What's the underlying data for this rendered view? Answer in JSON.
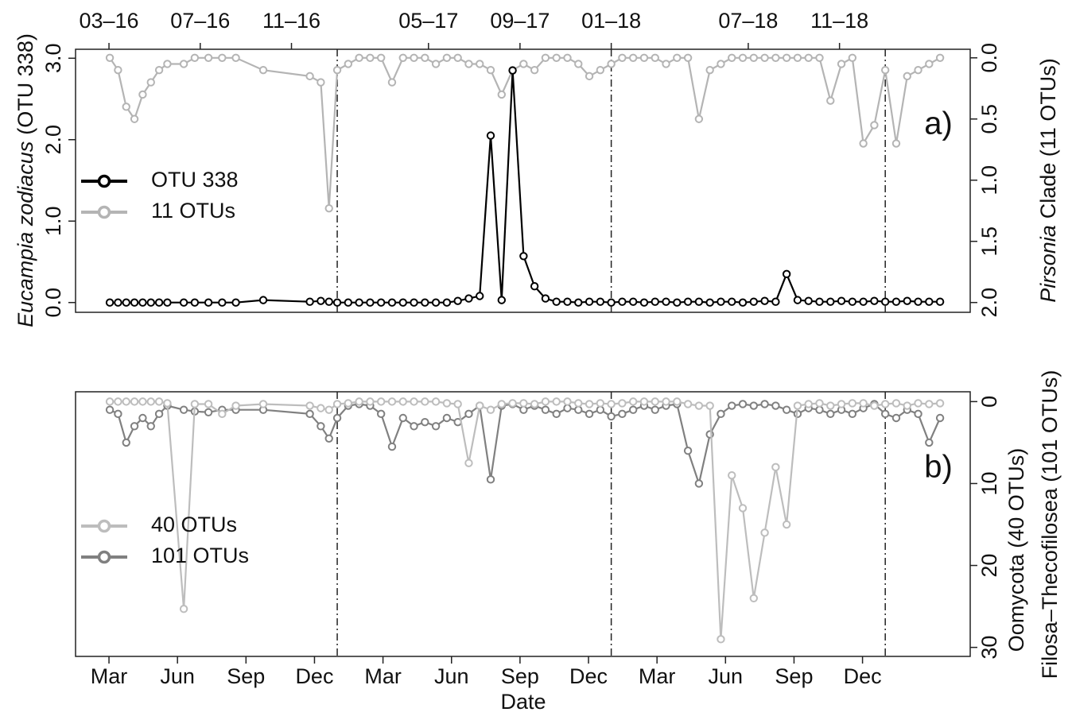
{
  "chart_data": [
    {
      "type": "line",
      "x": [
        2016.17,
        2016.2,
        2016.23,
        2016.26,
        2016.29,
        2016.32,
        2016.35,
        2016.38,
        2016.44,
        2016.48,
        2016.53,
        2016.58,
        2016.63,
        2016.73,
        2016.9,
        2016.94,
        2016.97,
        2017,
        2017.04,
        2017.08,
        2017.12,
        2017.16,
        2017.2,
        2017.24,
        2017.28,
        2017.32,
        2017.36,
        2017.4,
        2017.44,
        2017.48,
        2017.52,
        2017.56,
        2017.6,
        2017.64,
        2017.68,
        2017.72,
        2017.76,
        2017.8,
        2017.84,
        2017.88,
        2017.92,
        2017.96,
        2018,
        2018.04,
        2018.08,
        2018.12,
        2018.16,
        2018.2,
        2018.24,
        2018.28,
        2018.32,
        2018.36,
        2018.4,
        2018.44,
        2018.48,
        2018.52,
        2018.56,
        2018.6,
        2018.64,
        2018.68,
        2018.72,
        2018.76,
        2018.8,
        2018.84,
        2018.88,
        2018.92,
        2018.96,
        2019,
        2019.04,
        2019.08,
        2019.12,
        2019.16,
        2019.2
      ],
      "xlim": [
        2016.045,
        2019.31
      ],
      "top_xticks": [
        {
          "value": 2016.167,
          "label": "03–16"
        },
        {
          "value": 2016.5,
          "label": "07–16"
        },
        {
          "value": 2016.833,
          "label": "11–16"
        },
        {
          "value": 2017.333,
          "label": "05–17"
        },
        {
          "value": 2017.667,
          "label": "09–17"
        },
        {
          "value": 2018.0,
          "label": "01–18"
        },
        {
          "value": 2018.5,
          "label": "07–18"
        },
        {
          "value": 2018.833,
          "label": "11–18"
        }
      ],
      "vlines": [
        2017,
        2018,
        2019
      ],
      "ylim": [
        -0.12,
        3.11
      ],
      "yticks": [
        {
          "value": 0,
          "label": "0.0"
        },
        {
          "value": 1,
          "label": "1.0"
        },
        {
          "value": 2,
          "label": "2.0"
        },
        {
          "value": 3,
          "label": "3.0"
        }
      ],
      "ylabel": {
        "italic": "Eucampia zodiacus",
        "rest": "(OTU 338)"
      },
      "y2lim": [
        2.08,
        -0.07
      ],
      "y2ticks": [
        {
          "value": 0,
          "label": "0.0"
        },
        {
          "value": 0.5,
          "label": "0.5"
        },
        {
          "value": 1,
          "label": "1.0"
        },
        {
          "value": 1.5,
          "label": "1.5"
        },
        {
          "value": 2,
          "label": "2.0"
        }
      ],
      "y2label": {
        "italic": "Pirsonia",
        "rest": "Clade (11 OTUs)"
      },
      "annotation": "a)",
      "legend": "left",
      "series": [
        {
          "name": "OTU 338",
          "color": "#000000",
          "axis": "y",
          "values": [
            0,
            0,
            0,
            0,
            0,
            0,
            0,
            0,
            0,
            0,
            0,
            0,
            0,
            0.03,
            0.01,
            0.02,
            0.01,
            0,
            0,
            0,
            0,
            0,
            0,
            0,
            0,
            0,
            0,
            0,
            0.02,
            0.05,
            0.08,
            2.05,
            0.03,
            2.85,
            0.57,
            0.2,
            0.05,
            0.01,
            0.01,
            0,
            0.01,
            0.01,
            0,
            0.01,
            0.01,
            0,
            0.01,
            0.01,
            0,
            0.01,
            0.01,
            0,
            0.01,
            0.01,
            0,
            0.01,
            0.02,
            0.01,
            0.35,
            0.03,
            0.02,
            0.01,
            0.01,
            0.02,
            0.01,
            0.01,
            0.02,
            0.01,
            0.01,
            0.02,
            0.01,
            0.01,
            0.01
          ]
        },
        {
          "name": "11 OTUs",
          "color": "#b4b4b4",
          "axis": "y2",
          "values": [
            0,
            0.1,
            0.4,
            0.5,
            0.3,
            0.2,
            0.1,
            0.05,
            0.05,
            0,
            0,
            0,
            0,
            0.1,
            0.15,
            0.2,
            1.23,
            0.1,
            0.05,
            0,
            0,
            0,
            0.2,
            0,
            0,
            0,
            0.05,
            0,
            0,
            0.05,
            0.05,
            0.1,
            0.3,
            0.1,
            0.05,
            0.1,
            0,
            0,
            0,
            0.05,
            0.15,
            0.1,
            0.05,
            0,
            0,
            0,
            0,
            0.05,
            0,
            0,
            0.5,
            0.1,
            0.05,
            0,
            0,
            0,
            0,
            0,
            0,
            0,
            0,
            0,
            0.35,
            0.05,
            0,
            0.7,
            0.55,
            0.1,
            0.7,
            0.15,
            0.1,
            0.05,
            0
          ]
        }
      ]
    },
    {
      "type": "line",
      "x": [
        2016.17,
        2016.2,
        2016.23,
        2016.26,
        2016.29,
        2016.32,
        2016.35,
        2016.38,
        2016.44,
        2016.48,
        2016.53,
        2016.58,
        2016.63,
        2016.73,
        2016.9,
        2016.94,
        2016.97,
        2017,
        2017.04,
        2017.08,
        2017.12,
        2017.16,
        2017.2,
        2017.24,
        2017.28,
        2017.32,
        2017.36,
        2017.4,
        2017.44,
        2017.48,
        2017.52,
        2017.56,
        2017.6,
        2017.64,
        2017.68,
        2017.72,
        2017.76,
        2017.8,
        2017.84,
        2017.88,
        2017.92,
        2017.96,
        2018,
        2018.04,
        2018.08,
        2018.12,
        2018.16,
        2018.2,
        2018.24,
        2018.28,
        2018.32,
        2018.36,
        2018.4,
        2018.44,
        2018.48,
        2018.52,
        2018.56,
        2018.6,
        2018.64,
        2018.68,
        2018.72,
        2018.76,
        2018.8,
        2018.84,
        2018.88,
        2018.92,
        2018.96,
        2019,
        2019.04,
        2019.08,
        2019.12,
        2019.16,
        2019.2
      ],
      "xlim": [
        2016.045,
        2019.31
      ],
      "xticks": [
        {
          "value": 2016.167,
          "label": "Mar"
        },
        {
          "value": 2016.417,
          "label": "Jun"
        },
        {
          "value": 2016.667,
          "label": "Sep"
        },
        {
          "value": 2016.917,
          "label": "Dec"
        },
        {
          "value": 2017.167,
          "label": "Mar"
        },
        {
          "value": 2017.417,
          "label": "Jun"
        },
        {
          "value": 2017.667,
          "label": "Sep"
        },
        {
          "value": 2017.917,
          "label": "Dec"
        },
        {
          "value": 2018.167,
          "label": "Mar"
        },
        {
          "value": 2018.417,
          "label": "Jun"
        },
        {
          "value": 2018.667,
          "label": "Sep"
        },
        {
          "value": 2018.917,
          "label": "Dec"
        }
      ],
      "xlabel": "Date",
      "vlines": [
        2017,
        2018,
        2019
      ],
      "ylim": [
        31.1,
        -1.2
      ],
      "yticks": [
        0,
        10,
        20,
        30
      ],
      "y_axis_side": "right",
      "ylabel": [
        "Oomycota (40 OTUs)",
        "Filosa–Thecofilosea (101 OTUs)"
      ],
      "annotation": "b)",
      "legend": "left",
      "series": [
        {
          "name": "40 OTUs",
          "color": "#bdbdbd",
          "values": [
            0,
            0,
            0,
            0,
            0,
            0,
            0,
            0.2,
            25.3,
            0.3,
            0.3,
            1.5,
            0.5,
            0.3,
            0.5,
            0.8,
            1,
            0.3,
            0.2,
            0,
            0,
            0,
            0,
            0,
            0,
            0,
            0,
            0.2,
            0.3,
            7.5,
            0.5,
            1,
            0.3,
            0.2,
            0.2,
            0.3,
            0,
            0,
            0,
            0.2,
            0.3,
            0.2,
            0.3,
            0.2,
            0,
            0,
            0,
            0,
            0,
            0.3,
            0.5,
            0.5,
            29,
            9,
            13,
            24,
            16,
            8,
            15,
            0.5,
            0.3,
            0.2,
            0.5,
            0.3,
            0.2,
            0.2,
            0.5,
            0.3,
            0.2,
            0.5,
            0.2,
            0.3,
            0.2
          ]
        },
        {
          "name": "101 OTUs",
          "color": "#808080",
          "values": [
            1,
            1.5,
            5,
            3,
            2,
            3,
            1.5,
            0.5,
            1,
            1.2,
            1.3,
            1,
            1,
            1,
            1.5,
            3,
            4.5,
            2,
            0.5,
            0.3,
            0.5,
            1.5,
            5.5,
            2,
            3,
            2.5,
            3,
            2,
            2.5,
            1.5,
            0.5,
            9.5,
            0.5,
            0.3,
            1,
            0.5,
            1,
            1.5,
            0.8,
            1,
            1.5,
            1,
            1.8,
            1.5,
            1,
            0.5,
            1,
            0.5,
            0.3,
            6,
            10,
            4,
            1.5,
            0.5,
            0.3,
            0.5,
            0.3,
            0.5,
            1,
            1.5,
            0.8,
            1,
            1.5,
            1,
            1.5,
            0.8,
            0.3,
            1.5,
            2,
            1,
            1.5,
            5,
            2
          ]
        }
      ]
    }
  ]
}
